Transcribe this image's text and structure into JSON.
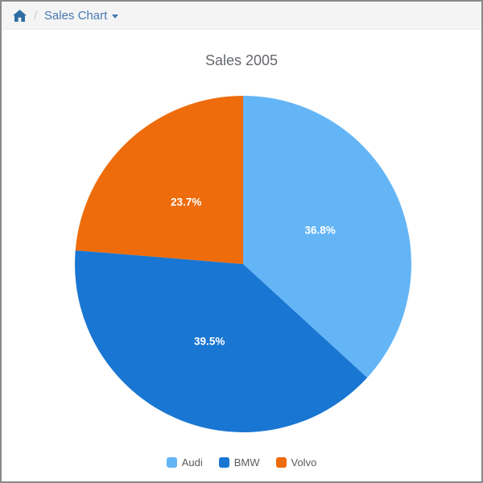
{
  "breadcrumb": {
    "separator": "/",
    "current_label": "Sales Chart"
  },
  "chart_data": {
    "type": "pie",
    "title": "Sales 2005",
    "series": [
      {
        "label": "Audi",
        "value": 36.8,
        "color": "#64b5f6"
      },
      {
        "label": "BMW",
        "value": 39.5,
        "color": "#1976d2"
      },
      {
        "label": "Volvo",
        "value": 23.7,
        "color": "#ee6c0c"
      }
    ],
    "start_angle_deg": 0,
    "direction": "clockwise",
    "slice_label_format": "percent_one_decimal",
    "legend_position": "bottom",
    "displayed_slice_labels": [
      "36.8%",
      "39.5%",
      "23.7%"
    ]
  },
  "colors": {
    "header_bg": "#f4f4f5",
    "window_border": "#87898c",
    "breadcrumb_link": "#4779b2",
    "home_icon": "#2e6da4",
    "title_text": "#65686d",
    "legend_text": "#595b5e",
    "slice_label_text": "#ffffff"
  }
}
